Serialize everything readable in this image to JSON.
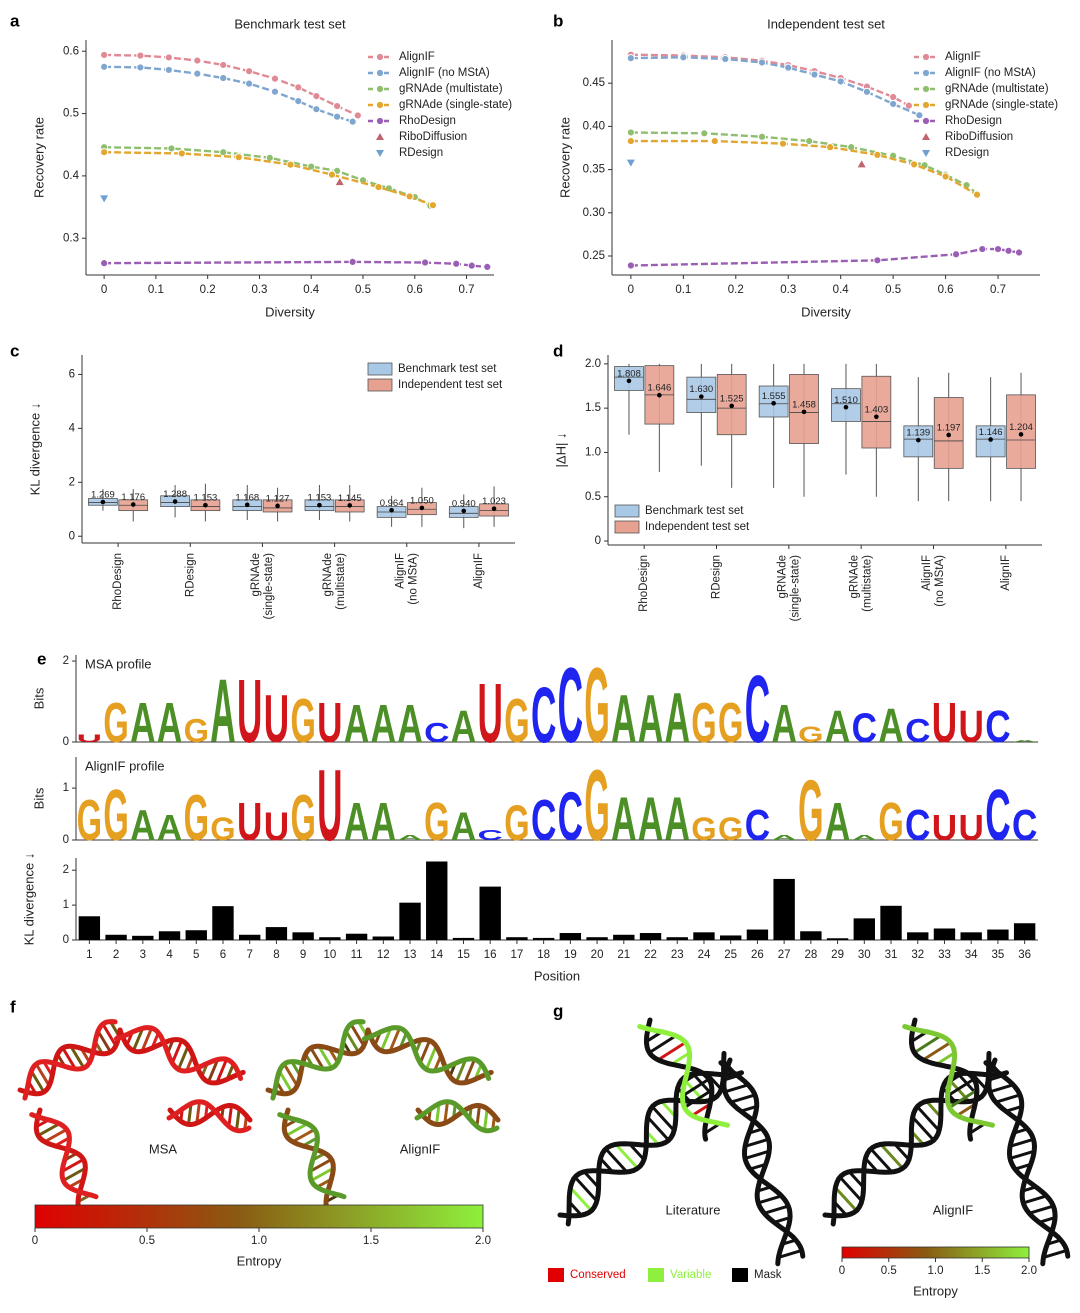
{
  "chart_data": [
    {
      "type": "line",
      "panel": "a",
      "title": "Benchmark test set",
      "xlabel": "Diversity",
      "ylabel": "Recovery rate",
      "xlim": [
        -0.035,
        0.753
      ],
      "ylim": [
        0.241,
        0.618
      ],
      "xticks": [
        0,
        0.1,
        0.2,
        0.3,
        0.4,
        0.5,
        0.6,
        0.7
      ],
      "yticks": [
        0.3,
        0.4,
        0.5,
        0.6
      ],
      "legend": "upper right",
      "series": [
        {
          "name": "AlignIF",
          "color": "#e08a96",
          "marker": "o",
          "x": [
            0,
            0.07,
            0.125,
            0.18,
            0.23,
            0.28,
            0.33,
            0.375,
            0.41,
            0.45,
            0.49
          ],
          "values": [
            0.594,
            0.593,
            0.59,
            0.585,
            0.578,
            0.568,
            0.556,
            0.542,
            0.528,
            0.512,
            0.497
          ]
        },
        {
          "name": "AlignIF (no MStA)",
          "color": "#7ea6cf",
          "marker": "o",
          "x": [
            0,
            0.07,
            0.125,
            0.18,
            0.23,
            0.28,
            0.33,
            0.375,
            0.41,
            0.45,
            0.48
          ],
          "values": [
            0.575,
            0.574,
            0.57,
            0.564,
            0.557,
            0.548,
            0.535,
            0.52,
            0.507,
            0.495,
            0.487
          ]
        },
        {
          "name": "gRNAde (multistate)",
          "color": "#8fbf6e",
          "marker": "o",
          "x": [
            0,
            0.13,
            0.23,
            0.32,
            0.4,
            0.45,
            0.5,
            0.55,
            0.6,
            0.63
          ],
          "values": [
            0.446,
            0.444,
            0.438,
            0.429,
            0.415,
            0.408,
            0.393,
            0.38,
            0.366,
            0.352
          ]
        },
        {
          "name": "gRNAde (single-state)",
          "color": "#e3a72f",
          "marker": "o",
          "x": [
            0,
            0.15,
            0.26,
            0.36,
            0.44,
            0.53,
            0.59,
            0.635
          ],
          "values": [
            0.438,
            0.436,
            0.43,
            0.418,
            0.402,
            0.382,
            0.367,
            0.353
          ]
        },
        {
          "name": "RhoDesign",
          "color": "#9a5fb5",
          "marker": "o",
          "x": [
            0,
            0.48,
            0.62,
            0.68,
            0.71,
            0.74
          ],
          "values": [
            0.26,
            0.262,
            0.261,
            0.259,
            0.256,
            0.254
          ]
        },
        {
          "name": "RiboDiffusion",
          "color": "#c0646e",
          "marker": "^",
          "x": [
            0.455
          ],
          "values": [
            0.39
          ]
        },
        {
          "name": "RDesign",
          "color": "#6e9fd0",
          "marker": "v",
          "x": [
            0
          ],
          "values": [
            0.364
          ]
        }
      ]
    },
    {
      "type": "line",
      "panel": "b",
      "title": "Independent test set",
      "xlabel": "Diversity",
      "ylabel": "Recovery rate",
      "xlim": [
        -0.036,
        0.78
      ],
      "ylim": [
        0.228,
        0.5
      ],
      "xticks": [
        0,
        0.1,
        0.2,
        0.3,
        0.4,
        0.5,
        0.6,
        0.7
      ],
      "yticks": [
        0.25,
        {
          "value": 0.3,
          "label": "0.30"
        },
        0.35,
        {
          "value": 0.4,
          "label": "0.40"
        },
        0.45
      ],
      "legend": "upper right",
      "series": [
        {
          "name": "AlignIF",
          "color": "#e08a96",
          "marker": "o",
          "x": [
            0,
            0.1,
            0.18,
            0.25,
            0.3,
            0.35,
            0.4,
            0.45,
            0.5,
            0.53
          ],
          "values": [
            0.483,
            0.482,
            0.48,
            0.476,
            0.471,
            0.464,
            0.456,
            0.446,
            0.434,
            0.424
          ]
        },
        {
          "name": "AlignIF (no MStA)",
          "color": "#7ea6cf",
          "marker": "o",
          "x": [
            0,
            0.1,
            0.18,
            0.25,
            0.3,
            0.35,
            0.4,
            0.45,
            0.5,
            0.55
          ],
          "values": [
            0.479,
            0.48,
            0.478,
            0.474,
            0.468,
            0.46,
            0.452,
            0.44,
            0.426,
            0.413
          ]
        },
        {
          "name": "gRNAde (multistate)",
          "color": "#8fbf6e",
          "marker": "o",
          "x": [
            0,
            0.14,
            0.25,
            0.34,
            0.42,
            0.5,
            0.56,
            0.6,
            0.64,
            0.66
          ],
          "values": [
            0.393,
            0.392,
            0.388,
            0.383,
            0.376,
            0.366,
            0.355,
            0.344,
            0.332,
            0.322
          ]
        },
        {
          "name": "gRNAde (single-state)",
          "color": "#e3a72f",
          "marker": "o",
          "x": [
            0,
            0.16,
            0.29,
            0.38,
            0.47,
            0.54,
            0.6,
            0.66
          ],
          "values": [
            0.383,
            0.383,
            0.38,
            0.376,
            0.367,
            0.356,
            0.342,
            0.321
          ]
        },
        {
          "name": "RhoDesign",
          "color": "#9a5fb5",
          "marker": "o",
          "x": [
            0,
            0.47,
            0.62,
            0.67,
            0.7,
            0.72,
            0.74
          ],
          "values": [
            0.239,
            0.245,
            0.252,
            0.258,
            0.258,
            0.256,
            0.254
          ]
        },
        {
          "name": "RiboDiffusion",
          "color": "#c0646e",
          "marker": "^",
          "x": [
            0.44
          ],
          "values": [
            0.356
          ]
        },
        {
          "name": "RDesign",
          "color": "#6e9fd0",
          "marker": "v",
          "x": [
            0
          ],
          "values": [
            0.358
          ]
        }
      ]
    },
    {
      "type": "box",
      "panel": "c",
      "ylabel": "KL divergence ↓",
      "ylim": [
        -0.25,
        6.72
      ],
      "yticks": [
        0,
        2,
        4,
        6
      ],
      "legend": "upper right",
      "categories": [
        [
          "RhoDesign"
        ],
        [
          "RDesign"
        ],
        [
          "gRNAde",
          "(single-state)"
        ],
        [
          "gRNAde",
          "(multistate)"
        ],
        [
          "AlignIF",
          "(no MStA)"
        ],
        [
          "AlignIF"
        ]
      ],
      "series": [
        {
          "name": "Benchmark test set",
          "color": "#a8c8e6",
          "point_color": "#4a7cba",
          "values": [
            1.269,
            1.288,
            1.168,
            1.153,
            0.964,
            0.94
          ],
          "value_labels": [
            "1.269",
            "1.288",
            "1.168",
            "1.153",
            "0.964",
            "0.940"
          ],
          "q1": [
            1.15,
            1.1,
            0.95,
            0.95,
            0.7,
            0.7
          ],
          "median": [
            1.25,
            1.25,
            1.1,
            1.1,
            0.9,
            0.85
          ],
          "q3": [
            1.4,
            1.5,
            1.35,
            1.35,
            1.1,
            1.1
          ],
          "whislo": [
            0.95,
            0.7,
            0.6,
            0.6,
            0.35,
            0.3
          ],
          "whishi": [
            1.75,
            1.9,
            1.9,
            1.9,
            1.5,
            1.55
          ]
        },
        {
          "name": "Independent test set",
          "color": "#e7a191",
          "point_color": "#e8801a",
          "values": [
            1.176,
            1.153,
            1.127,
            1.145,
            1.05,
            1.023
          ],
          "value_labels": [
            "1.176",
            "1.153",
            "1.127",
            "1.145",
            "1.050",
            "1.023"
          ],
          "q1": [
            0.95,
            0.95,
            0.9,
            0.9,
            0.8,
            0.75
          ],
          "median": [
            1.15,
            1.1,
            1.05,
            1.1,
            1.0,
            0.95
          ],
          "q3": [
            1.35,
            1.35,
            1.35,
            1.35,
            1.25,
            1.2
          ],
          "whislo": [
            0.55,
            0.55,
            0.55,
            0.55,
            0.35,
            0.35
          ],
          "whishi": [
            1.75,
            1.95,
            1.8,
            1.9,
            1.8,
            1.85
          ]
        }
      ]
    },
    {
      "type": "box",
      "panel": "d",
      "ylabel": "|ΔH| ↓",
      "ylim": [
        -0.045,
        2.1
      ],
      "yticks": [
        0,
        0.5,
        {
          "value": 1,
          "label": "1.0"
        },
        1.5,
        {
          "value": 2,
          "label": "2.0"
        }
      ],
      "legend": "lower left",
      "categories": [
        [
          "RhoDesign"
        ],
        [
          "RDesign"
        ],
        [
          "gRNAde",
          "(single-state)"
        ],
        [
          "gRNAde",
          "(multistate)"
        ],
        [
          "AlignIF",
          "(no MStA)"
        ],
        [
          "AlignIF"
        ]
      ],
      "series": [
        {
          "name": "Benchmark test set",
          "color": "#a8c8e6",
          "point_color": "#4a7cba",
          "values": [
            1.808,
            1.63,
            1.555,
            1.51,
            1.139,
            1.146
          ],
          "value_labels": [
            "1.808",
            "1.630",
            "1.555",
            "1.510",
            "1.139",
            "1.146"
          ],
          "q1": [
            1.7,
            1.45,
            1.4,
            1.35,
            0.95,
            0.95
          ],
          "median": [
            1.85,
            1.6,
            1.55,
            1.55,
            1.15,
            1.15
          ],
          "q3": [
            1.97,
            1.85,
            1.75,
            1.72,
            1.3,
            1.3
          ],
          "whislo": [
            1.2,
            0.85,
            0.6,
            0.75,
            0.45,
            0.45
          ],
          "whishi": [
            2.0,
            2.0,
            2.0,
            2.0,
            1.85,
            1.85
          ]
        },
        {
          "name": "Independent test set",
          "color": "#e7a191",
          "point_color": "#e8801a",
          "values": [
            1.646,
            1.525,
            1.458,
            1.403,
            1.197,
            1.204
          ],
          "value_labels": [
            "1.646",
            "1.525",
            "1.458",
            "1.403",
            "1.197",
            "1.204"
          ],
          "q1": [
            1.32,
            1.2,
            1.1,
            1.05,
            0.82,
            0.82
          ],
          "median": [
            1.65,
            1.5,
            1.45,
            1.35,
            1.13,
            1.14
          ],
          "q3": [
            1.98,
            1.88,
            1.88,
            1.86,
            1.62,
            1.65
          ],
          "whislo": [
            0.78,
            0.6,
            0.5,
            0.5,
            0.45,
            0.45
          ],
          "whishi": [
            2.0,
            2.0,
            2.0,
            2.0,
            1.9,
            1.9
          ]
        }
      ]
    },
    {
      "type": "logo",
      "panel": "e",
      "title": "MSA profile",
      "ylabel": "Bits",
      "ylim": [
        0,
        2.15
      ],
      "yticks": [
        0,
        2
      ],
      "letter_colors": {
        "A": "#4b8f26",
        "C": "#1f24f0",
        "G": "#e5a021",
        "U": "#d0151b"
      },
      "letters": [
        "U",
        "G",
        "A",
        "A",
        "G",
        "A",
        "U",
        "U",
        "G",
        "U",
        "A",
        "A",
        "A",
        "C",
        "A",
        "U",
        "G",
        "C",
        "C",
        "G",
        "A",
        "A",
        "A",
        "G",
        "G",
        "C",
        "A",
        "G",
        "A",
        "C",
        "A",
        "C",
        "U",
        "U",
        "C",
        "A"
      ],
      "values": [
        0.2,
        1.0,
        1.0,
        1.0,
        0.6,
        1.6,
        1.6,
        1.2,
        1.1,
        1.0,
        0.95,
        0.95,
        0.95,
        0.5,
        0.8,
        1.5,
        1.1,
        1.4,
        1.9,
        1.9,
        1.2,
        1.2,
        1.25,
        1.0,
        1.0,
        1.7,
        0.95,
        0.4,
        0.8,
        0.75,
        0.85,
        0.6,
        1.0,
        0.8,
        0.8,
        0.05
      ]
    },
    {
      "type": "logo",
      "title": "AlignIF profile",
      "ylabel": "Bits",
      "ylim": [
        0,
        1.6
      ],
      "yticks": [
        0,
        1
      ],
      "letter_colors": {
        "A": "#4b8f26",
        "C": "#1f24f0",
        "G": "#e5a021",
        "U": "#d0151b"
      },
      "letters": [
        "G",
        "G",
        "A",
        "A",
        "G",
        "G",
        "U",
        "U",
        "G",
        "U",
        "A",
        "A",
        "A",
        "G",
        "A",
        "C",
        "G",
        "C",
        "C",
        "G",
        "A",
        "A",
        "A",
        "G",
        "G",
        "C",
        "A",
        "G",
        "A",
        "A",
        "G",
        "C",
        "U",
        "U",
        "C",
        "C"
      ],
      "values": [
        0.8,
        1.0,
        0.6,
        0.5,
        0.9,
        0.45,
        0.75,
        0.55,
        0.9,
        1.4,
        0.75,
        0.75,
        0.1,
        0.75,
        0.55,
        0.2,
        0.7,
        0.8,
        0.95,
        1.4,
        0.85,
        0.85,
        0.85,
        0.45,
        0.45,
        0.6,
        0.1,
        1.2,
        0.75,
        0.1,
        0.75,
        0.6,
        0.5,
        0.5,
        1.0,
        0.6
      ]
    },
    {
      "type": "bar",
      "xlabel": "Position",
      "ylabel": "KL divergence ↓",
      "ylim": [
        0,
        2.35
      ],
      "yticks": [
        0,
        1,
        2
      ],
      "color": "#000000",
      "categories": [
        1,
        2,
        3,
        4,
        5,
        6,
        7,
        8,
        9,
        10,
        11,
        12,
        13,
        14,
        15,
        16,
        17,
        18,
        19,
        20,
        21,
        22,
        23,
        24,
        25,
        26,
        27,
        28,
        29,
        30,
        31,
        32,
        33,
        34,
        35,
        36
      ],
      "values": [
        0.68,
        0.15,
        0.12,
        0.25,
        0.28,
        0.97,
        0.15,
        0.37,
        0.22,
        0.08,
        0.18,
        0.1,
        1.07,
        2.25,
        0.06,
        1.53,
        0.08,
        0.06,
        0.2,
        0.08,
        0.15,
        0.2,
        0.08,
        0.22,
        0.13,
        0.3,
        1.75,
        0.25,
        0.05,
        0.62,
        0.98,
        0.22,
        0.33,
        0.22,
        0.3,
        0.48
      ]
    }
  ],
  "structures": {
    "f": {
      "panel": "f",
      "labels": [
        "MSA",
        "AlignIF"
      ],
      "colorbar": {
        "label": "Entropy",
        "lim": [
          0,
          2
        ],
        "ticks": [
          0,
          0.5,
          {
            "value": 1,
            "label": "1.0"
          },
          1.5,
          {
            "value": 2,
            "label": "2.0"
          }
        ]
      }
    },
    "g": {
      "panel": "g",
      "labels": [
        "Literature",
        "AlignIF"
      ],
      "legend": [
        {
          "name": "Conserved",
          "color": "#e00000"
        },
        {
          "name": "Variable",
          "color": "#8ef03c"
        },
        {
          "name": "Mask",
          "color": "#000000"
        }
      ],
      "colorbar": {
        "label": "Entropy",
        "lim": [
          0,
          2
        ],
        "ticks": [
          0,
          0.5,
          {
            "value": 1,
            "label": "1.0"
          },
          1.5,
          {
            "value": 2,
            "label": "2.0"
          }
        ]
      }
    }
  }
}
